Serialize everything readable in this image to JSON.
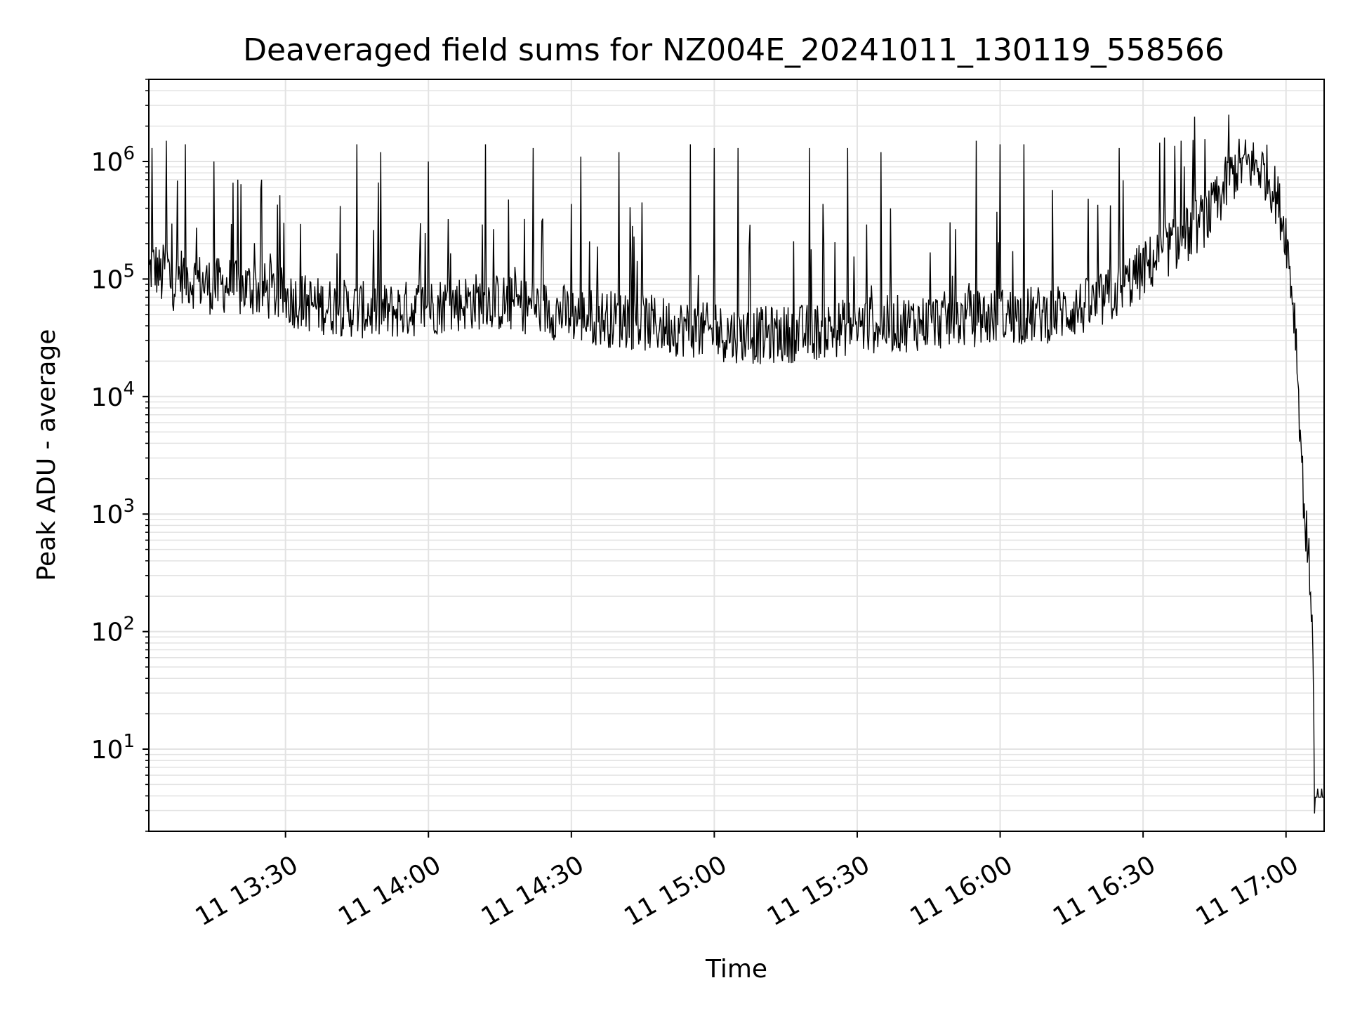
{
  "chart_data": {
    "type": "line",
    "title": "Deaveraged field sums for NZ004E_20241011_130119_558566",
    "xlabel": "Time",
    "ylabel": "Peak ADU - average",
    "y_scale": "log",
    "ylim": [
      2,
      5000000
    ],
    "xlim": [
      "2024-10-11 13:01:19",
      "2024-10-11 17:08:00"
    ],
    "grid": true,
    "line_color": "#000000",
    "grid_color": "#e3e3e3",
    "x_ticks": [
      {
        "value": "2024-10-11 13:30",
        "label": "11 13:30"
      },
      {
        "value": "2024-10-11 14:00",
        "label": "11 14:00"
      },
      {
        "value": "2024-10-11 14:30",
        "label": "11 14:30"
      },
      {
        "value": "2024-10-11 15:00",
        "label": "11 15:00"
      },
      {
        "value": "2024-10-11 15:30",
        "label": "11 15:30"
      },
      {
        "value": "2024-10-11 16:00",
        "label": "11 16:00"
      },
      {
        "value": "2024-10-11 16:30",
        "label": "11 16:30"
      },
      {
        "value": "2024-10-11 17:00",
        "label": "11 17:00"
      }
    ],
    "y_ticks": [
      {
        "value": 10,
        "base": "10",
        "exp": "1"
      },
      {
        "value": 100,
        "base": "10",
        "exp": "2"
      },
      {
        "value": 1000,
        "base": "10",
        "exp": "3"
      },
      {
        "value": 10000,
        "base": "10",
        "exp": "4"
      },
      {
        "value": 100000,
        "base": "10",
        "exp": "5"
      },
      {
        "value": 1000000,
        "base": "10",
        "exp": "6"
      }
    ],
    "series": [
      {
        "x": [
          "2024-10-11 13:01:19",
          "2024-10-11 13:02",
          "2024-10-11 13:03",
          "2024-10-11 13:04",
          "2024-10-11 13:05",
          "2024-10-11 13:06",
          "2024-10-11 13:08",
          "2024-10-11 13:10",
          "2024-10-11 13:12",
          "2024-10-11 13:15",
          "2024-10-11 13:18",
          "2024-10-11 13:20",
          "2024-10-11 13:22",
          "2024-10-11 13:25",
          "2024-10-11 13:28",
          "2024-10-11 13:30",
          "2024-10-11 13:33",
          "2024-10-11 13:36",
          "2024-10-11 13:40",
          "2024-10-11 13:45",
          "2024-10-11 13:50",
          "2024-10-11 13:55",
          "2024-10-11 14:00",
          "2024-10-11 14:10",
          "2024-10-11 14:20",
          "2024-10-11 14:30",
          "2024-10-11 14:40",
          "2024-10-11 14:50",
          "2024-10-11 15:00",
          "2024-10-11 15:10",
          "2024-10-11 15:20",
          "2024-10-11 15:30",
          "2024-10-11 15:40",
          "2024-10-11 15:50",
          "2024-10-11 16:00",
          "2024-10-11 16:10",
          "2024-10-11 16:20",
          "2024-10-11 16:25",
          "2024-10-11 16:30",
          "2024-10-11 16:35",
          "2024-10-11 16:40",
          "2024-10-11 16:45",
          "2024-10-11 16:48",
          "2024-10-11 16:50",
          "2024-10-11 16:52",
          "2024-10-11 16:54",
          "2024-10-11 16:56",
          "2024-10-11 16:58",
          "2024-10-11 17:00",
          "2024-10-11 17:01",
          "2024-10-11 17:02",
          "2024-10-11 17:03",
          "2024-10-11 17:03:30",
          "2024-10-11 17:04",
          "2024-10-11 17:04:30",
          "2024-10-11 17:05",
          "2024-10-11 17:05:30",
          "2024-10-11 17:06",
          "2024-10-11 17:07",
          "2024-10-11 17:08"
        ],
        "values": [
          110000,
          130000,
          120000,
          100000,
          150000,
          90000,
          110000,
          100000,
          95000,
          85000,
          90000,
          80000,
          85000,
          80000,
          75000,
          70000,
          65000,
          60000,
          58000,
          55000,
          52000,
          55000,
          58000,
          65000,
          60000,
          50000,
          45000,
          40000,
          35000,
          33000,
          35000,
          40000,
          42000,
          45000,
          48000,
          50000,
          60000,
          80000,
          120000,
          180000,
          250000,
          400000,
          700000,
          900000,
          950000,
          900000,
          800000,
          500000,
          250000,
          100000,
          40000,
          5000,
          2000,
          900,
          500,
          300,
          150,
          4,
          4,
          4
        ]
      }
    ],
    "spikes": [
      {
        "x": "2024-10-11 13:02",
        "y": 1300000
      },
      {
        "x": "2024-10-11 13:05",
        "y": 1500000
      },
      {
        "x": "2024-10-11 13:09",
        "y": 1400000
      },
      {
        "x": "2024-10-11 13:15",
        "y": 1000000
      },
      {
        "x": "2024-10-11 13:20",
        "y": 700000
      },
      {
        "x": "2024-10-11 13:25",
        "y": 700000
      },
      {
        "x": "2024-10-11 13:45",
        "y": 1400000
      },
      {
        "x": "2024-10-11 13:50",
        "y": 1200000
      },
      {
        "x": "2024-10-11 14:00",
        "y": 1000000
      },
      {
        "x": "2024-10-11 14:12",
        "y": 1400000
      },
      {
        "x": "2024-10-11 14:22",
        "y": 1300000
      },
      {
        "x": "2024-10-11 14:32",
        "y": 1100000
      },
      {
        "x": "2024-10-11 14:40",
        "y": 1200000
      },
      {
        "x": "2024-10-11 14:55",
        "y": 1400000
      },
      {
        "x": "2024-10-11 15:00",
        "y": 1300000
      },
      {
        "x": "2024-10-11 15:05",
        "y": 1300000
      },
      {
        "x": "2024-10-11 15:20",
        "y": 1300000
      },
      {
        "x": "2024-10-11 15:28",
        "y": 1300000
      },
      {
        "x": "2024-10-11 15:35",
        "y": 1200000
      },
      {
        "x": "2024-10-11 15:55",
        "y": 1500000
      },
      {
        "x": "2024-10-11 16:00",
        "y": 1400000
      },
      {
        "x": "2024-10-11 16:05",
        "y": 1400000
      },
      {
        "x": "2024-10-11 16:25",
        "y": 1300000
      },
      {
        "x": "2024-10-11 16:38",
        "y": 1500000
      },
      {
        "x": "2024-10-11 16:48",
        "y": 2500000
      }
    ]
  }
}
